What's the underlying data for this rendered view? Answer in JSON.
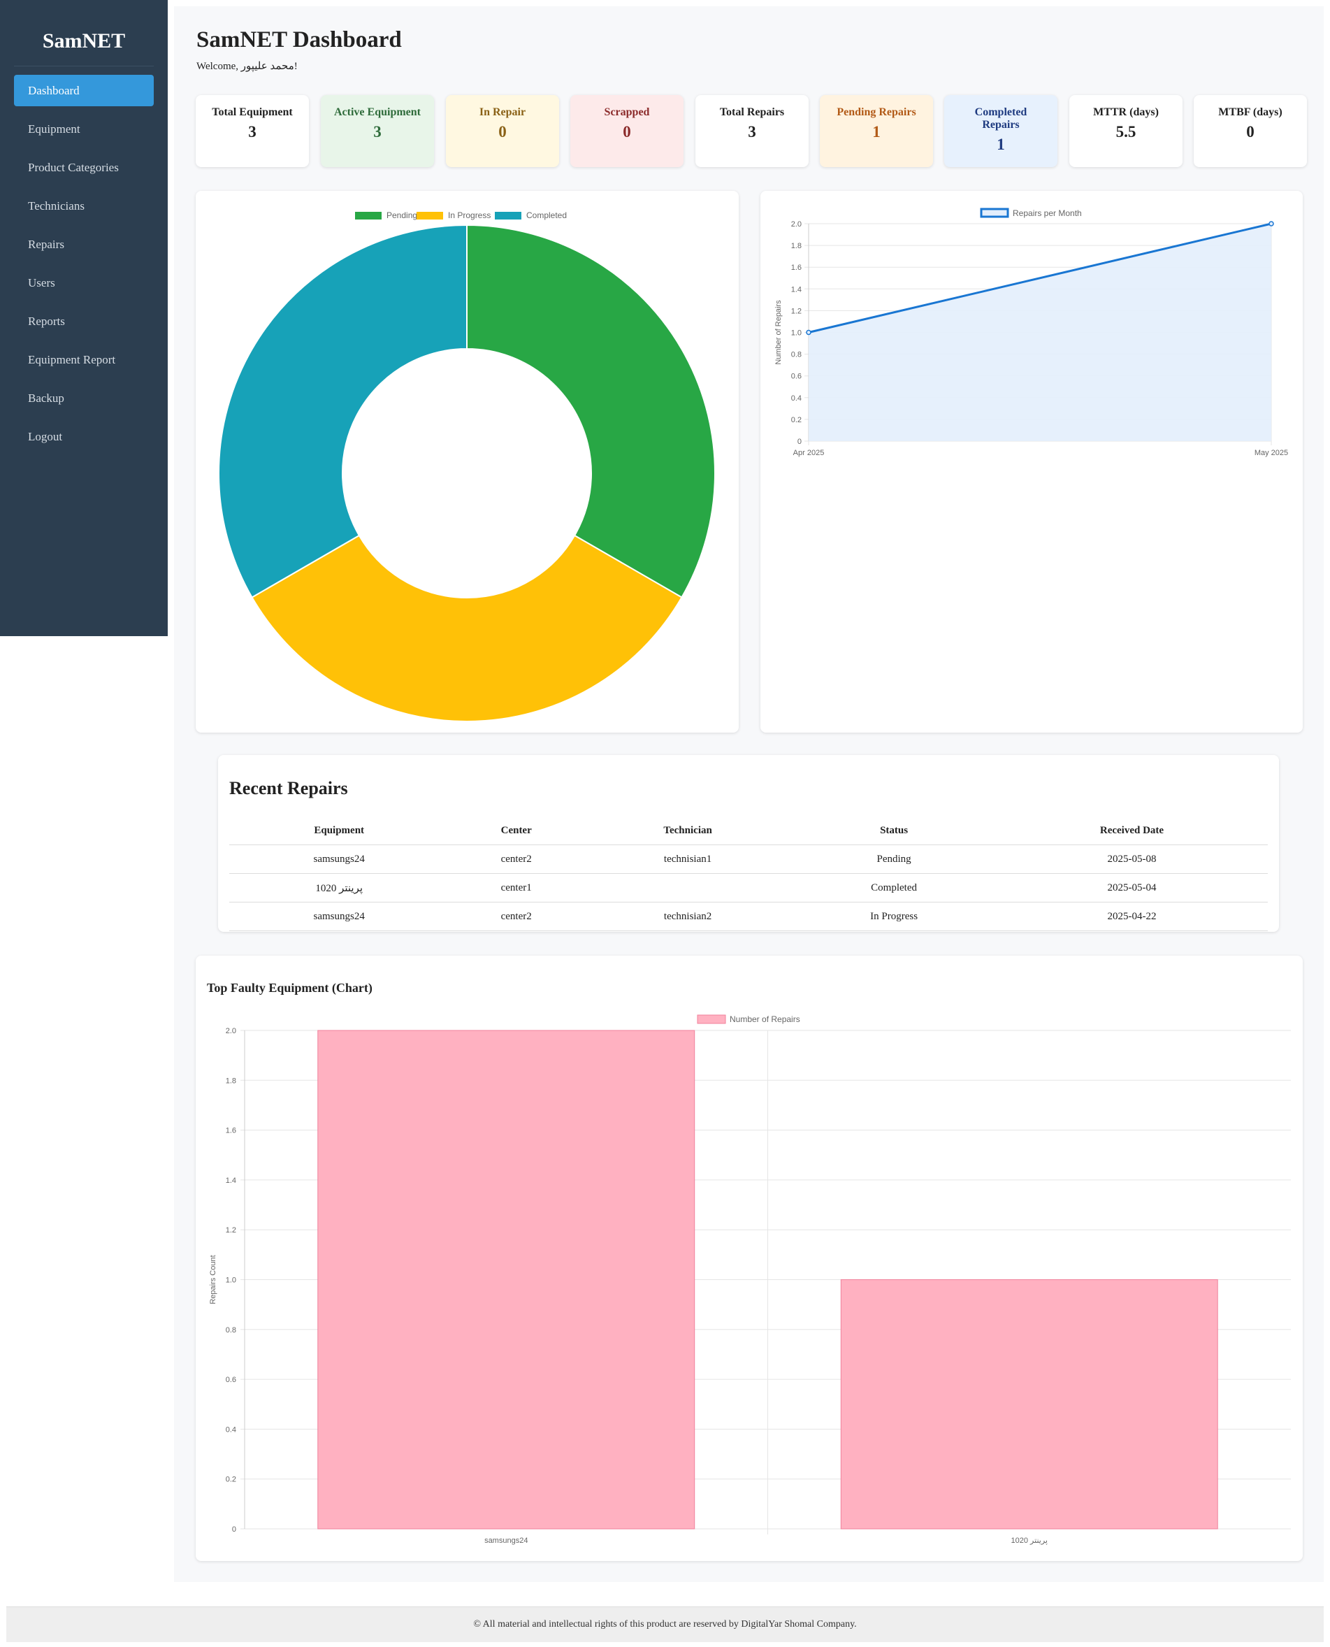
{
  "sidebar": {
    "brand": "SamNET",
    "items": [
      {
        "label": "Dashboard"
      },
      {
        "label": "Equipment"
      },
      {
        "label": "Product Categories"
      },
      {
        "label": "Technicians"
      },
      {
        "label": "Repairs"
      },
      {
        "label": "Users"
      },
      {
        "label": "Reports"
      },
      {
        "label": "Equipment Report"
      },
      {
        "label": "Backup"
      },
      {
        "label": "Logout"
      }
    ]
  },
  "header": {
    "title": "SamNET Dashboard",
    "welcome": "Welcome, محمد علیپور!"
  },
  "stats": [
    {
      "label": "Total Equipment",
      "value": "3",
      "bg": "#ffffff",
      "color": "#222222"
    },
    {
      "label": "Active Equipment",
      "value": "3",
      "bg": "#e8f5e9",
      "color": "#2e6b3a"
    },
    {
      "label": "In Repair",
      "value": "0",
      "bg": "#fff8e1",
      "color": "#8a6116"
    },
    {
      "label": "Scrapped",
      "value": "0",
      "bg": "#fdeaea",
      "color": "#8b2a2a"
    },
    {
      "label": "Total Repairs",
      "value": "3",
      "bg": "#ffffff",
      "color": "#222222"
    },
    {
      "label": "Pending Repairs",
      "value": "1",
      "bg": "#fff3e0",
      "color": "#b25a17"
    },
    {
      "label": "Completed Repairs",
      "value": "1",
      "bg": "#e7f1fd",
      "color": "#1f3b80"
    },
    {
      "label": "MTTR (days)",
      "value": "5.5",
      "bg": "#ffffff",
      "color": "#222222"
    },
    {
      "label": "MTBF (days)",
      "value": "0",
      "bg": "#ffffff",
      "color": "#222222"
    }
  ],
  "chart_data": [
    {
      "type": "pie",
      "variant": "doughnut",
      "categories": [
        "Pending",
        "In Progress",
        "Completed"
      ],
      "values": [
        1,
        1,
        1
      ],
      "colors": [
        "#28a745",
        "#ffc107",
        "#17a2b8"
      ],
      "legend": "top"
    },
    {
      "type": "line",
      "categories": [
        "Apr 2025",
        "May 2025"
      ],
      "series": [
        {
          "name": "Repairs per Month",
          "values": [
            1,
            2
          ],
          "color": "#1976d2",
          "fill": "#e3eefc"
        }
      ],
      "ylabel": "Number of Repairs",
      "ylim": [
        0,
        2.0
      ],
      "yticks": [
        "0",
        "0.2",
        "0.4",
        "0.6",
        "0.8",
        "1.0",
        "1.2",
        "1.4",
        "1.6",
        "1.8",
        "2.0"
      ],
      "grid": true,
      "legend": "top"
    },
    {
      "type": "bar",
      "title": "Top Faulty Equipment (Chart)",
      "categories": [
        "samsungs24",
        "پرینتر 1020"
      ],
      "series": [
        {
          "name": "Number of Repairs",
          "values": [
            2,
            1
          ],
          "color": "#ffb1c1",
          "border": "#f0819b"
        }
      ],
      "ylabel": "Repairs Count",
      "ylim": [
        0,
        2.0
      ],
      "yticks": [
        "0",
        "0.2",
        "0.4",
        "0.6",
        "0.8",
        "1.0",
        "1.2",
        "1.4",
        "1.6",
        "1.8",
        "2.0"
      ],
      "grid": true,
      "legend": "top"
    }
  ],
  "recent": {
    "title": "Recent Repairs",
    "columns": [
      "Equipment",
      "Center",
      "Technician",
      "Status",
      "Received Date"
    ],
    "rows": [
      [
        "samsungs24",
        "center2",
        "technisian1",
        "Pending",
        "2025-05-08"
      ],
      [
        "پرینتر 1020",
        "center1",
        "",
        "Completed",
        "2025-05-04"
      ],
      [
        "samsungs24",
        "center2",
        "technisian2",
        "In Progress",
        "2025-04-22"
      ]
    ]
  },
  "footer": {
    "text": "© All material and intellectual rights of this product are reserved by DigitalYar Shomal Company."
  }
}
